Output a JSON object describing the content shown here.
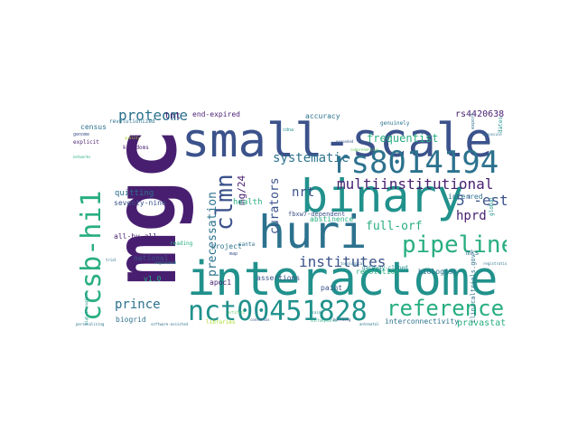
{
  "colors": {
    "background": "#ffffff",
    "dark_purple": "#481f70",
    "slate_blue": "#3b528b",
    "steel_blue": "#2c728e",
    "teal": "#21918c",
    "green": "#28ae80",
    "light_green": "#5ec962",
    "lime": "#addc30"
  },
  "words": [
    "mgc",
    "small-scale",
    "interactome",
    "binary",
    "huri",
    "ccsb-hi1",
    "rs8014194",
    "nct00451828",
    "pipeline",
    "reference",
    "multiinstitutional",
    "clmn",
    "proteome",
    "precessation",
    "systematic",
    "5'-est",
    "institutes",
    "prince",
    "hprd",
    "nrt",
    "full-orf",
    "curators",
    "mg/24",
    "rs4420638",
    "frequentist",
    "tnt",
    "end-expired",
    "accuracy",
    "interconnectivity",
    "pravastatin",
    "biogrid",
    "revolution",
    "apoc1",
    "all-by-all",
    "national",
    "quitting",
    "seventy-nine",
    "census",
    "health",
    "abstinence",
    "inferred",
    "project",
    "biologist",
    "assertions",
    "paint",
    "mks",
    "v1.0",
    "fbxw7-dependent",
    "revolutionized",
    "kingdoms",
    "explicit",
    "genuinely",
    "reading",
    "santa",
    "genome",
    "map",
    "clinicaltrials.gov",
    "gateway-cloned",
    "dates",
    "global",
    "libraries",
    "cdna",
    "expanded",
    "minuscule",
    "registered",
    "trial",
    "quality",
    "networks",
    "nsaid",
    "sulfonylurea",
    "artifact",
    "high-throughput",
    "software-assisted",
    "antenatal",
    "registration",
    "personalizing",
    "comprehensive",
    "export",
    "topological",
    "building",
    "consensus"
  ]
}
